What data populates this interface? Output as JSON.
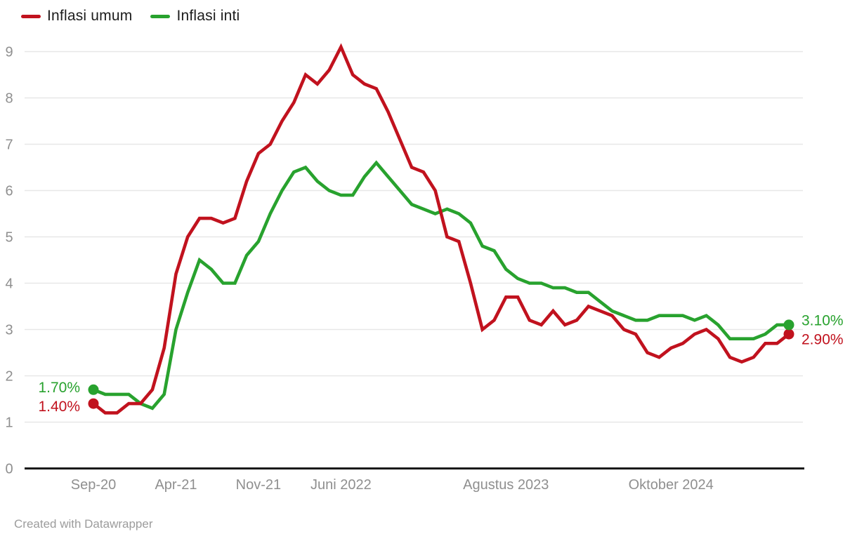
{
  "legend": {
    "items": [
      {
        "id": "umum",
        "label": "Inflasi umum",
        "color": "#c1121e"
      },
      {
        "id": "inti",
        "label": "Inflasi inti",
        "color": "#28a22e"
      }
    ]
  },
  "footer": {
    "text": "Created with Datawrapper"
  },
  "chart_data": {
    "type": "line",
    "title": "",
    "xlabel": "",
    "ylabel": "",
    "x_unit": "month",
    "x_start": "Sep-20",
    "x_end": "Agu-25",
    "grid": true,
    "legend_position": "top-left",
    "y_axis": {
      "min": 0,
      "max": 9,
      "ticks": [
        0,
        1,
        2,
        3,
        4,
        5,
        6,
        7,
        8,
        9
      ]
    },
    "x_ticks": [
      {
        "label": "Sep-20",
        "index": 0
      },
      {
        "label": "Apr-21",
        "index": 7
      },
      {
        "label": "Nov-21",
        "index": 14
      },
      {
        "label": "Juni 2022",
        "index": 21
      },
      {
        "label": "Agustus 2023",
        "index": 35
      },
      {
        "label": "Oktober 2024",
        "index": 49
      }
    ],
    "series": [
      {
        "name": "Inflasi umum",
        "color": "#c1121e",
        "start_label": "1.40%",
        "end_label": "2.90%",
        "values": [
          1.4,
          1.2,
          1.2,
          1.4,
          1.4,
          1.7,
          2.6,
          4.2,
          5.0,
          5.4,
          5.4,
          5.3,
          5.4,
          6.2,
          6.8,
          7.0,
          7.5,
          7.9,
          8.5,
          8.3,
          8.6,
          9.1,
          8.5,
          8.3,
          8.2,
          7.7,
          7.1,
          6.5,
          6.4,
          6.0,
          5.0,
          4.9,
          4.0,
          3.0,
          3.2,
          3.7,
          3.7,
          3.2,
          3.1,
          3.4,
          3.1,
          3.2,
          3.5,
          3.4,
          3.3,
          3.0,
          2.9,
          2.5,
          2.4,
          2.6,
          2.7,
          2.9,
          3.0,
          2.8,
          2.4,
          2.3,
          2.4,
          2.7,
          2.7,
          2.9
        ]
      },
      {
        "name": "Inflasi inti",
        "color": "#28a22e",
        "start_label": "1.70%",
        "end_label": "3.10%",
        "values": [
          1.7,
          1.6,
          1.6,
          1.6,
          1.4,
          1.3,
          1.6,
          3.0,
          3.8,
          4.5,
          4.3,
          4.0,
          4.0,
          4.6,
          4.9,
          5.5,
          6.0,
          6.4,
          6.5,
          6.2,
          6.0,
          5.9,
          5.9,
          6.3,
          6.6,
          6.3,
          6.0,
          5.7,
          5.6,
          5.5,
          5.6,
          5.5,
          5.3,
          4.8,
          4.7,
          4.3,
          4.1,
          4.0,
          4.0,
          3.9,
          3.9,
          3.8,
          3.8,
          3.6,
          3.4,
          3.3,
          3.2,
          3.2,
          3.3,
          3.3,
          3.3,
          3.2,
          3.3,
          3.1,
          2.8,
          2.8,
          2.8,
          2.9,
          3.1,
          3.1
        ]
      }
    ],
    "colors": {
      "grid": "#e7e7e7",
      "axis": "#1a1a1a",
      "tick_label": "#8f8f8f",
      "footer_text": "#9c9c9c"
    }
  }
}
